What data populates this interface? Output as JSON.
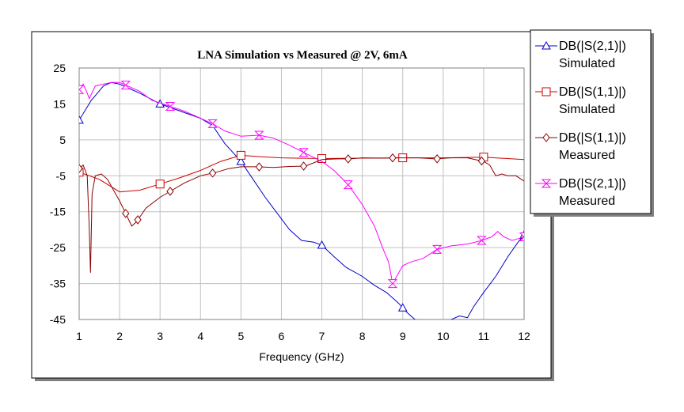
{
  "chart_data": {
    "type": "line",
    "title": "LNA Simulation vs Measured @ 2V, 6mA",
    "xlabel": "Frequency (GHz)",
    "ylabel": "",
    "xlim": [
      1,
      12
    ],
    "ylim": [
      -45,
      25
    ],
    "x_ticks": [
      1,
      2,
      3,
      4,
      5,
      6,
      7,
      8,
      9,
      10,
      11,
      12
    ],
    "y_ticks": [
      25,
      15,
      5,
      -5,
      -15,
      -25,
      -35,
      -45
    ],
    "grid": true,
    "legend_position": "right",
    "series": [
      {
        "name_line1": "DB(|S(2,1)|)",
        "name_line2": "Simulated",
        "color": "#0000cc",
        "marker": "triangle",
        "x": [
          1,
          1.3,
          1.6,
          1.8,
          2,
          2.2,
          2.5,
          3,
          3.5,
          4,
          4.3,
          4.6,
          5,
          5.3,
          5.6,
          6,
          6.2,
          6.5,
          6.8,
          7,
          7.3,
          7.6,
          8,
          8.3,
          8.6,
          8.9,
          9.1,
          9.3,
          9.8,
          10.1,
          10.4,
          10.6,
          10.75,
          11,
          11.3,
          11.6,
          11.85,
          12
        ],
        "y": [
          10.5,
          16,
          20,
          21,
          20.5,
          19.5,
          18,
          15,
          13,
          11,
          9,
          4,
          -1,
          -6,
          -11,
          -17,
          -20,
          -23,
          -23.5,
          -24.3,
          -27.5,
          -30.5,
          -33,
          -35.5,
          -37.5,
          -40.5,
          -43,
          -45,
          -46,
          -45.5,
          -44,
          -44.5,
          -41.5,
          -37.5,
          -33,
          -27.5,
          -23.5,
          -21.5
        ],
        "markers_x": [
          1,
          3,
          5,
          7,
          9,
          12
        ]
      },
      {
        "name_line1": "DB(|S(1,1)|)",
        "name_line2": "Simulated",
        "color": "#cc0000",
        "marker": "square",
        "x": [
          1,
          1.5,
          2,
          2.5,
          3,
          3.5,
          4,
          4.5,
          5,
          5.5,
          6,
          7,
          8,
          9,
          10,
          11,
          12
        ],
        "y": [
          -4,
          -6,
          -9.5,
          -9,
          -7.3,
          -5.5,
          -3.5,
          -1,
          0.7,
          0.3,
          0,
          -0.2,
          -0.1,
          0,
          0,
          0.2,
          -0.5
        ],
        "markers_x": [
          1,
          3,
          5,
          7,
          9,
          11
        ]
      },
      {
        "name_line1": "DB(|S(1,1)|)",
        "name_line2": "Measured",
        "color": "#8b0000",
        "marker": "diamond",
        "x": [
          1,
          1.1,
          1.2,
          1.25,
          1.28,
          1.32,
          1.4,
          1.55,
          1.7,
          1.85,
          2,
          2.15,
          2.3,
          2.4,
          2.5,
          2.65,
          3,
          3.3,
          3.6,
          4,
          4.4,
          4.7,
          5,
          5.4,
          5.8,
          6.2,
          6.6,
          7,
          7.4,
          7.7,
          8,
          8.5,
          8.8,
          9,
          9.4,
          9.8,
          10.2,
          10.6,
          11,
          11.15,
          11.3,
          11.45,
          11.6,
          11.8,
          12
        ],
        "y": [
          -3,
          -2,
          -5,
          -20,
          -32,
          -10,
          -5,
          -4.5,
          -6,
          -9,
          -12,
          -15.5,
          -19,
          -18,
          -16.5,
          -14,
          -11,
          -9,
          -7,
          -5,
          -4,
          -3,
          -2.5,
          -2.5,
          -2.7,
          -2.4,
          -2.3,
          -0.5,
          -0.3,
          -0.3,
          0,
          -0.1,
          0,
          0,
          0,
          -0.3,
          0,
          0,
          -1,
          -2,
          -5,
          -4.5,
          -5,
          -5,
          -6.5
        ],
        "markers_x": [
          1,
          2.15,
          2.45,
          3.25,
          4.3,
          5.45,
          6.55,
          7.65,
          8.75,
          9.85,
          10.95
        ]
      },
      {
        "name_line1": "DB(|S(2,1)|)",
        "name_line2": "Measured",
        "color": "#ff00ff",
        "marker": "hourglass",
        "x": [
          1,
          1.1,
          1.2,
          1.25,
          1.4,
          1.6,
          1.8,
          2,
          2.2,
          2.5,
          2.8,
          3.2,
          3.6,
          4,
          4.3,
          4.6,
          5,
          5.45,
          5.8,
          6.2,
          6.55,
          7,
          7.3,
          7.65,
          8,
          8.3,
          8.5,
          8.65,
          8.75,
          8.85,
          9,
          9.2,
          9.5,
          9.85,
          10.2,
          10.6,
          10.95,
          11.2,
          11.35,
          11.5,
          11.7,
          11.85,
          12
        ],
        "y": [
          19,
          20.5,
          18,
          16.5,
          20,
          20.5,
          21,
          21,
          20,
          18.5,
          16,
          14.5,
          13,
          11,
          9.5,
          7.5,
          6,
          6.3,
          5.5,
          3.5,
          1.5,
          -1,
          -3.5,
          -7.5,
          -13,
          -19,
          -25,
          -29,
          -35,
          -33,
          -30,
          -29,
          -28,
          -25.5,
          -24.5,
          -24,
          -23,
          -22,
          -20.5,
          -22,
          -23,
          -22.5,
          -22
        ],
        "markers_x": [
          1,
          2.15,
          3.25,
          4.3,
          5.45,
          6.55,
          7.65,
          8.75,
          9.85,
          10.95,
          12
        ]
      }
    ]
  }
}
